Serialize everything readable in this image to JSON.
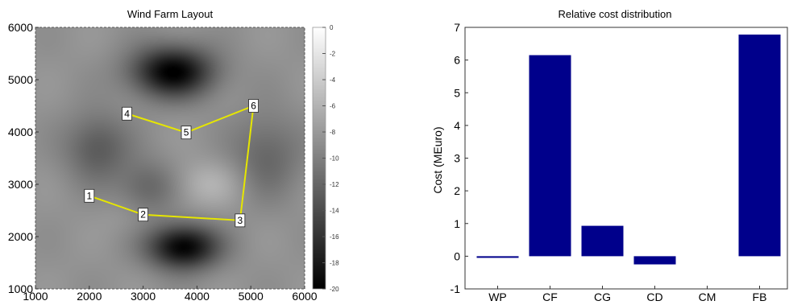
{
  "chart_data": [
    {
      "type": "heatmap",
      "title": "Wind Farm Layout",
      "xlim": [
        1000,
        6000
      ],
      "ylim": [
        1000,
        6000
      ],
      "x_ticks": [
        "1000",
        "2000",
        "3000",
        "4000",
        "5000",
        "6000"
      ],
      "y_ticks": [
        "1000",
        "2000",
        "3000",
        "4000",
        "5000",
        "6000"
      ],
      "colorbar": {
        "range": [
          -20,
          0
        ],
        "ticks": [
          "0",
          "-2",
          "-4",
          "-6",
          "-8",
          "-10",
          "-12",
          "-14",
          "-16",
          "-18",
          "-20"
        ],
        "colormap": "gray"
      },
      "field_features": [
        {
          "x": 3550,
          "y": 5150,
          "value": -20,
          "sx": 750,
          "sy": 480
        },
        {
          "x": 3750,
          "y": 1800,
          "value": -20,
          "sx": 650,
          "sy": 420
        },
        {
          "x": 2150,
          "y": 3700,
          "value": -13,
          "sx": 600,
          "sy": 650
        },
        {
          "x": 3100,
          "y": 2950,
          "value": -12,
          "sx": 550,
          "sy": 500
        },
        {
          "x": 5300,
          "y": 3550,
          "value": -12,
          "sx": 650,
          "sy": 800
        },
        {
          "x": 4200,
          "y": 3000,
          "value": -6,
          "sx": 650,
          "sy": 450
        },
        {
          "x": 2600,
          "y": 2350,
          "value": -8,
          "sx": 450,
          "sy": 350
        }
      ],
      "turbines": [
        {
          "id": "1",
          "x": 2000,
          "y": 2780
        },
        {
          "id": "2",
          "x": 3000,
          "y": 2420
        },
        {
          "id": "3",
          "x": 4800,
          "y": 2310
        },
        {
          "id": "4",
          "x": 2700,
          "y": 4350
        },
        {
          "id": "5",
          "x": 3800,
          "y": 3990
        },
        {
          "id": "6",
          "x": 5050,
          "y": 4500
        }
      ],
      "cable_paths": [
        [
          "1",
          "2",
          "3",
          "6",
          "5",
          "4"
        ]
      ],
      "colors": {
        "cable": "#e6e600",
        "frame": "#555555"
      }
    },
    {
      "type": "bar",
      "title": "Relative cost distribution",
      "categories": [
        "WP",
        "CF",
        "CG",
        "CD",
        "CM",
        "FB"
      ],
      "values": [
        -0.05,
        6.15,
        0.93,
        -0.25,
        0.0,
        6.78
      ],
      "ylabel": "Cost (MEuro)",
      "xlabel": "",
      "ylim": [
        -1,
        7
      ],
      "y_ticks": [
        "-1",
        "0",
        "1",
        "2",
        "3",
        "4",
        "5",
        "6",
        "7"
      ],
      "colors": {
        "bar": "#00008b"
      }
    }
  ]
}
